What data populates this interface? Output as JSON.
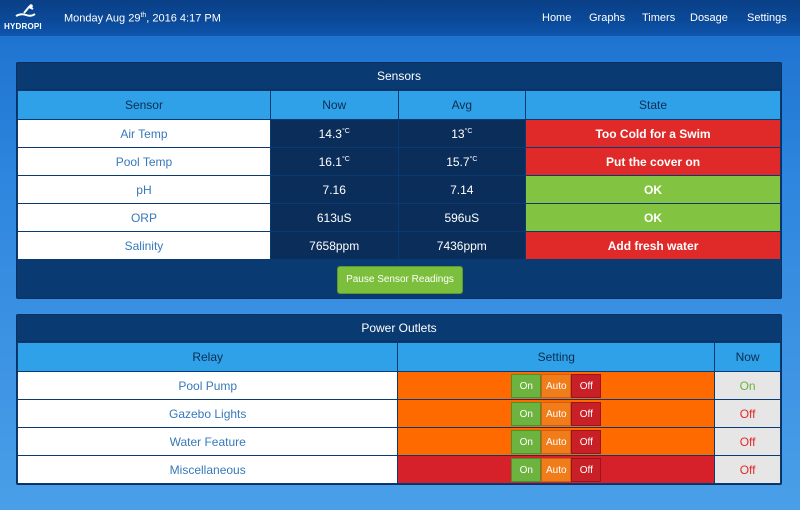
{
  "header": {
    "logo_text": "HYDROPI",
    "date_prefix": "Monday Aug 29",
    "date_suffix": "th",
    "date_rest": ", 2016 4:17 PM",
    "nav": [
      "Home",
      "Graphs",
      "Timers",
      "Dosage",
      "Settings"
    ]
  },
  "sensors": {
    "title": "Sensors",
    "columns": [
      "Sensor",
      "Now",
      "Avg",
      "State"
    ],
    "rows": [
      {
        "name": "Air Temp",
        "now": "14.3",
        "now_unit": "°C",
        "avg": "13",
        "avg_unit": "°C",
        "state": "Too Cold for a Swim",
        "state_color": "red"
      },
      {
        "name": "Pool Temp",
        "now": "16.1",
        "now_unit": "°C",
        "avg": "15.7",
        "avg_unit": "°C",
        "state": "Put the cover on",
        "state_color": "red"
      },
      {
        "name": "pH",
        "now": "7.16",
        "now_unit": "",
        "avg": "7.14",
        "avg_unit": "",
        "state": "OK",
        "state_color": "green"
      },
      {
        "name": "ORP",
        "now": "613uS",
        "now_unit": "",
        "avg": "596uS",
        "avg_unit": "",
        "state": "OK",
        "state_color": "green"
      },
      {
        "name": "Salinity",
        "now": "7658ppm",
        "now_unit": "",
        "avg": "7436ppm",
        "avg_unit": "",
        "state": "Add fresh water",
        "state_color": "red"
      }
    ],
    "pause_button": "Pause Sensor Readings"
  },
  "power": {
    "title": "Power Outlets",
    "columns": [
      "Relay",
      "Setting",
      "Now"
    ],
    "button_labels": {
      "on": "On",
      "auto": "Auto",
      "off": "Off"
    },
    "rows": [
      {
        "name": "Pool Pump",
        "setting_color": "orange",
        "now": "On"
      },
      {
        "name": "Gazebo Lights",
        "setting_color": "orange",
        "now": "Off"
      },
      {
        "name": "Water Feature",
        "setting_color": "orange",
        "now": "Off"
      },
      {
        "name": "Miscellaneous",
        "setting_color": "red",
        "now": "Off"
      }
    ]
  },
  "colors": {
    "accent_blue": "#2fa1e8",
    "panel_dark": "#0a3a72",
    "status_red": "#e02a2a",
    "status_green": "#82c341",
    "setting_orange": "#ff6a00"
  }
}
